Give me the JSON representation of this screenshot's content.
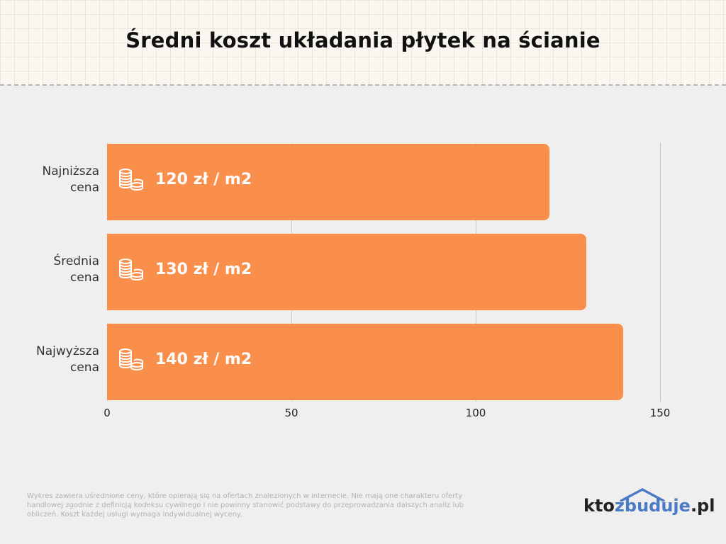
{
  "title": "Średni koszt układania płytek na ścianie",
  "chart_data": {
    "type": "bar",
    "orientation": "horizontal",
    "title": "Średni koszt układania płytek na ścianie",
    "categories": [
      "Najniższa cena",
      "Średnia cena",
      "Najwyższa cena"
    ],
    "category_lines": [
      [
        "Najniższa",
        "cena"
      ],
      [
        "Średnia",
        "cena"
      ],
      [
        "Najwyższa",
        "cena"
      ]
    ],
    "values": [
      120,
      130,
      140
    ],
    "data_labels": [
      "120 zł / m2",
      "130 zł / m2",
      "140 zł / m2"
    ],
    "x_ticks": [
      "0",
      "50",
      "100",
      "150"
    ],
    "xlim": [
      0,
      150
    ],
    "grid": true,
    "bar_color": "#fa8f4c",
    "bar_icon": "coins-stack-icon"
  },
  "footnote": "Wykres zawiera uśrednione ceny, które opierają się na ofertach znalezionych w internecie. Nie mają one charakteru oferty handlowej zgodnie z definicją kodeksu cywilnego i nie powinny stanowić podstawy do przeprowadzania dalszych analiz lub obliczeń. Koszt każdej usługi wymaga indywidualnej wyceny.",
  "logo": {
    "part1": "kto",
    "part2": "zbuduje",
    "part3": ".pl",
    "accent_color": "#4b7bc4"
  }
}
